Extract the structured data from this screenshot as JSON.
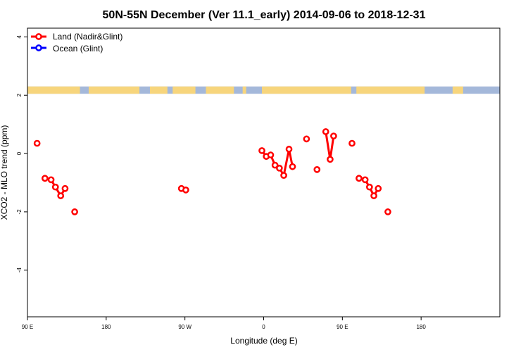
{
  "chart_data": {
    "type": "scatter",
    "title": "50N-55N December (Ver 11.1_early)   2014-09-06 to 2018-12-31",
    "xlabel": "Longitude (deg E)",
    "ylabel": "XCO2 - MLO trend (ppm)",
    "xlim": [
      -90,
      180
    ],
    "ylim": [
      -5.6,
      4.3
    ],
    "x_ticks": [
      {
        "value": -90,
        "label": "90 E"
      },
      {
        "value": -45,
        "label": "180"
      },
      {
        "value": 0,
        "label": "90 W"
      },
      {
        "value": 45,
        "label": "0"
      },
      {
        "value": 90,
        "label": "90 E"
      },
      {
        "value": 135,
        "label": "180"
      }
    ],
    "y_ticks": [
      {
        "value": 4,
        "label": "4"
      },
      {
        "value": 2,
        "label": "2"
      },
      {
        "value": 0,
        "label": "0"
      },
      {
        "value": -2,
        "label": "-2"
      },
      {
        "value": -4,
        "label": "-4"
      }
    ],
    "legend_position": "top-left",
    "grid": false,
    "land_ocean_strip": {
      "y_range": [
        2.05,
        2.3
      ],
      "land_color": "#F7D57C",
      "ocean_color": "#A4B8DA",
      "land_segments": [
        [
          -90,
          -60
        ],
        [
          -55,
          -26
        ],
        [
          -20,
          -10
        ],
        [
          -7,
          6
        ],
        [
          12,
          28
        ],
        [
          33,
          35
        ],
        [
          44,
          95
        ],
        [
          98,
          137
        ],
        [
          153,
          159
        ]
      ]
    },
    "series": [
      {
        "name": "Land (Nadir&Glint)",
        "color": "#FF0000",
        "segments": [
          [
            [
              -84.5,
              0.35
            ]
          ],
          [
            [
              -80,
              -0.85
            ],
            [
              -76.5,
              -0.9
            ],
            [
              -74,
              -1.15
            ],
            [
              -71,
              -1.45
            ],
            [
              -68.5,
              -1.2
            ]
          ],
          [
            [
              -63,
              -2.0
            ]
          ],
          [
            [
              -2,
              -1.2
            ],
            [
              0.5,
              -1.25
            ]
          ],
          [
            [
              44,
              0.1
            ],
            [
              46.5,
              -0.1
            ],
            [
              49,
              -0.05
            ],
            [
              51.5,
              -0.4
            ],
            [
              54,
              -0.5
            ],
            [
              56.5,
              -0.75
            ],
            [
              59.5,
              0.15
            ],
            [
              61.5,
              -0.45
            ]
          ],
          [
            [
              69.5,
              0.5
            ]
          ],
          [
            [
              75.5,
              -0.55
            ]
          ],
          [
            [
              80.5,
              0.75
            ],
            [
              83,
              -0.2
            ],
            [
              85,
              0.6
            ]
          ],
          [
            [
              95.5,
              0.35
            ]
          ],
          [
            [
              99.5,
              -0.85
            ],
            [
              103,
              -0.9
            ],
            [
              105.5,
              -1.15
            ],
            [
              108,
              -1.45
            ],
            [
              110.5,
              -1.2
            ]
          ],
          [
            [
              116,
              -2.0
            ]
          ]
        ]
      },
      {
        "name": "Ocean (Glint)",
        "color": "#0000FF",
        "segments": []
      }
    ]
  }
}
